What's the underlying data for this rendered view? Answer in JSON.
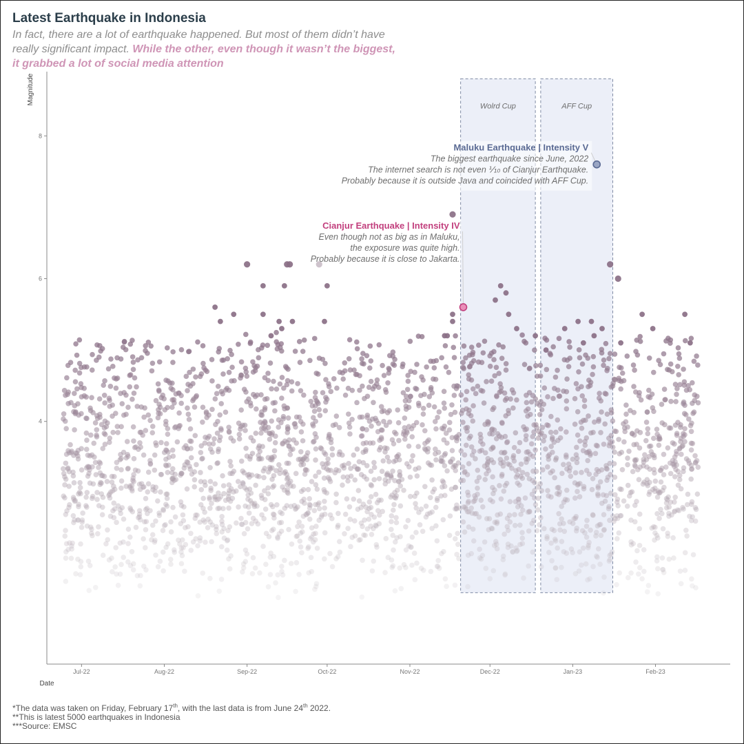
{
  "title": "Latest Earthquake in Indonesia",
  "subtitle": {
    "plain": "In fact, there are a lot of earthquake happened. But most of them didn’t have really significant impact.",
    "highlight": "While the other, even though it wasn’t the biggest, it grabbed a lot of social media attention"
  },
  "caption": {
    "line1_pre": "*The data was taken on Friday, February 17",
    "line1_sup1": "th",
    "line1_mid": ", with the last data is from June 24",
    "line1_sup2": "th",
    "line1_post": " 2022.",
    "line2": "**This is latest 5000 earthquakes in Indonesia",
    "line3": "***Source: EMSC"
  },
  "colors": {
    "point_high": "#8a6f86",
    "point_low": "#c9c4c8",
    "cianjur": "#c2407e",
    "maluku": "#5a6a93",
    "band_fill": "#e6eaf5",
    "band_stroke": "#7f8aa3",
    "axis": "#888888",
    "title": "#2b3e4a",
    "subtitle_highlight": "#cf95b6"
  },
  "chart_data": {
    "type": "scatter",
    "xlabel": "Date",
    "ylabel": "Magnitude",
    "x_scale": "date",
    "xlim": [
      "2022-06-18",
      "2023-03-01"
    ],
    "ylim": [
      0.6,
      8.9
    ],
    "x_ticks": [
      {
        "date": "2022-07-01",
        "label": "Jul-22"
      },
      {
        "date": "2022-08-01",
        "label": "Aug-22"
      },
      {
        "date": "2022-09-01",
        "label": "Sep-22"
      },
      {
        "date": "2022-10-01",
        "label": "Oct-22"
      },
      {
        "date": "2022-11-01",
        "label": "Nov-22"
      },
      {
        "date": "2022-12-01",
        "label": "Dec-22"
      },
      {
        "date": "2023-01-01",
        "label": "Jan-23"
      },
      {
        "date": "2023-02-01",
        "label": "Feb-23"
      }
    ],
    "y_ticks": [
      {
        "value": 4,
        "label": "4"
      },
      {
        "value": 6,
        "label": "6"
      },
      {
        "value": 8,
        "label": "8"
      }
    ],
    "grid": false,
    "point_range": {
      "x": [
        "2022-06-24",
        "2023-02-17"
      ],
      "magnitude": [
        1.5,
        5.3
      ],
      "count": 5000
    },
    "bands": [
      {
        "label": "Wolrd Cup",
        "x": [
          "2022-11-20",
          "2022-12-18"
        ],
        "y": [
          1.6,
          8.8
        ]
      },
      {
        "label": "AFF Cup",
        "x": [
          "2022-12-20",
          "2023-01-16"
        ],
        "y": [
          1.6,
          8.8
        ]
      }
    ],
    "notable_points": [
      {
        "x": "2022-08-20",
        "y": 5.6
      },
      {
        "x": "2022-08-22",
        "y": 5.4
      },
      {
        "x": "2022-08-27",
        "y": 5.5
      },
      {
        "x": "2022-09-01",
        "y": 6.2
      },
      {
        "x": "2022-09-07",
        "y": 5.9
      },
      {
        "x": "2022-09-07",
        "y": 5.5
      },
      {
        "x": "2022-09-10",
        "y": 5.2
      },
      {
        "x": "2022-09-13",
        "y": 5.4
      },
      {
        "x": "2022-09-14",
        "y": 5.3
      },
      {
        "x": "2022-09-15",
        "y": 5.9
      },
      {
        "x": "2022-09-16",
        "y": 6.2
      },
      {
        "x": "2022-09-17",
        "y": 6.2
      },
      {
        "x": "2022-09-18",
        "y": 5.4
      },
      {
        "x": "2022-09-28",
        "y": 6.2
      },
      {
        "x": "2022-09-30",
        "y": 5.4
      },
      {
        "x": "2022-10-01",
        "y": 5.9
      },
      {
        "x": "2022-11-14",
        "y": 5.2
      },
      {
        "x": "2022-11-15",
        "y": 5.2
      },
      {
        "x": "2022-11-17",
        "y": 6.9
      },
      {
        "x": "2022-11-17",
        "y": 5.5
      },
      {
        "x": "2022-11-17",
        "y": 5.4
      },
      {
        "x": "2022-12-03",
        "y": 5.7
      },
      {
        "x": "2022-12-05",
        "y": 5.9
      },
      {
        "x": "2022-12-07",
        "y": 5.8
      },
      {
        "x": "2022-12-08",
        "y": 5.5
      },
      {
        "x": "2022-12-11",
        "y": 5.3
      },
      {
        "x": "2022-12-18",
        "y": 5.2
      },
      {
        "x": "2022-12-22",
        "y": 5.0
      },
      {
        "x": "2022-12-29",
        "y": 5.3
      },
      {
        "x": "2023-01-03",
        "y": 5.4
      },
      {
        "x": "2023-01-05",
        "y": 5.1
      },
      {
        "x": "2023-01-08",
        "y": 5.4
      },
      {
        "x": "2023-01-09",
        "y": 5.2
      },
      {
        "x": "2023-01-12",
        "y": 5.3
      },
      {
        "x": "2023-01-15",
        "y": 6.2
      },
      {
        "x": "2023-01-18",
        "y": 6.0
      },
      {
        "x": "2023-01-19",
        "y": 5.1
      },
      {
        "x": "2023-01-27",
        "y": 5.5
      },
      {
        "x": "2023-01-31",
        "y": 5.3
      },
      {
        "x": "2023-02-12",
        "y": 5.5
      },
      {
        "x": "2023-02-14",
        "y": 5.1
      }
    ],
    "highlights": [
      {
        "name": "Cianjur",
        "x": "2022-11-21",
        "y": 5.6,
        "title": "Cianjur Earthquake | Intensity IV",
        "lines": [
          "Even though not as big as in Maluku,",
          "the exposure was quite high.",
          "Probably because it is close to Jakarta."
        ]
      },
      {
        "name": "Maluku",
        "x": "2023-01-10",
        "y": 7.6,
        "title": "Maluku Earthquake | Intensity V",
        "lines": [
          "The biggest earthquake since June, 2022",
          "The internet search is not even ⅒  of Cianjur Earthquake.",
          "Probably because it is outside Java and coincided with AFF Cup."
        ]
      }
    ]
  }
}
